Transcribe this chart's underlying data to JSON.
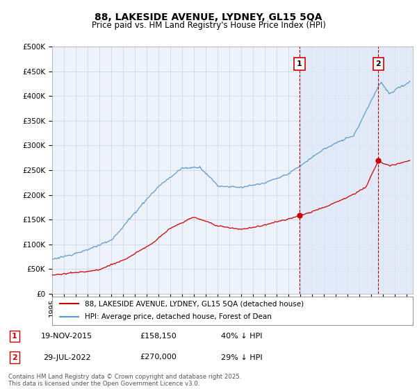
{
  "title": "88, LAKESIDE AVENUE, LYDNEY, GL15 5QA",
  "subtitle": "Price paid vs. HM Land Registry's House Price Index (HPI)",
  "ylim": [
    0,
    500000
  ],
  "yticks": [
    0,
    50000,
    100000,
    150000,
    200000,
    250000,
    300000,
    350000,
    400000,
    450000,
    500000
  ],
  "xlim_start": 1995.0,
  "xlim_end": 2025.5,
  "background_color": "#ffffff",
  "plot_bg_color": "#eef2fb",
  "shade_color": "#dce8f5",
  "grid_color": "#c8d0e0",
  "hpi_color": "#5b9bd5",
  "price_color": "#cc0000",
  "vline_color": "#cc0000",
  "annotation_box_color": "#cc0000",
  "legend_label_price": "88, LAKESIDE AVENUE, LYDNEY, GL15 5QA (detached house)",
  "legend_label_hpi": "HPI: Average price, detached house, Forest of Dean",
  "transaction_1": {
    "date_label": "19-NOV-2015",
    "date_x": 2015.92,
    "price": 158150,
    "label": "£158,150",
    "pct": "40% ↓ HPI",
    "box_num": "1"
  },
  "transaction_2": {
    "date_label": "29-JUL-2022",
    "date_x": 2022.58,
    "price": 270000,
    "label": "£270,000",
    "pct": "29% ↓ HPI",
    "box_num": "2"
  },
  "footer": "Contains HM Land Registry data © Crown copyright and database right 2025.\nThis data is licensed under the Open Government Licence v3.0.",
  "title_fontsize": 10,
  "subtitle_fontsize": 8.5,
  "axis_fontsize": 7.5,
  "legend_fontsize": 8
}
